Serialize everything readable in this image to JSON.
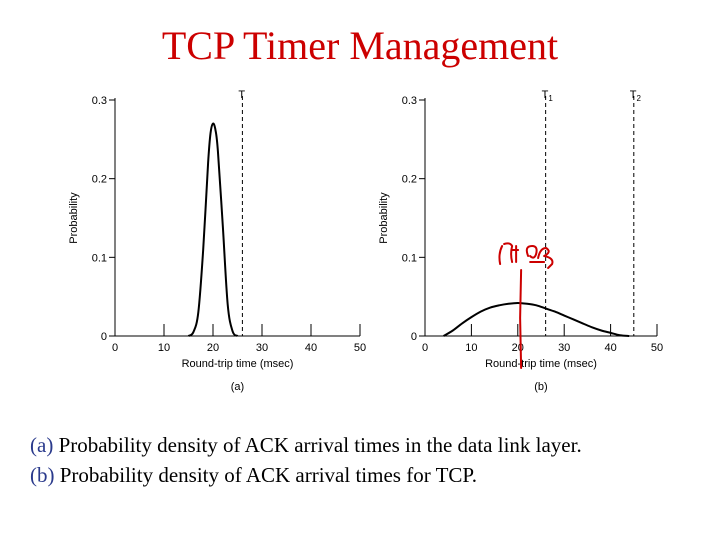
{
  "title": "TCP Timer Management",
  "caption": [
    {
      "marker": "(a)",
      "text": " Probability density of ACK arrival times in the data link layer."
    },
    {
      "marker": "(b)",
      "text": " Probability density of  ACK arrival times for TCP."
    }
  ],
  "colors": {
    "title": "#cc0000",
    "caption_marker": "#2a3a8c",
    "annotation": "#cc0000"
  },
  "chart_data": [
    {
      "type": "line",
      "panel_label": "(a)",
      "xlabel": "Round-trip time (msec)",
      "ylabel": "Probability",
      "xlim": [
        0,
        50
      ],
      "ylim": [
        0,
        0.3
      ],
      "xticks": [
        0,
        10,
        20,
        30,
        40,
        50
      ],
      "yticks": [
        0,
        0.1,
        0.2,
        0.3
      ],
      "ytick_labels": [
        "0",
        "0.1",
        "0.2",
        "0.3"
      ],
      "grid": false,
      "series": [
        {
          "x": [
            15,
            16,
            17,
            18,
            19,
            19.5,
            20,
            20.5,
            21,
            22,
            23,
            24,
            25
          ],
          "y": [
            0,
            0.005,
            0.03,
            0.11,
            0.22,
            0.258,
            0.27,
            0.262,
            0.235,
            0.14,
            0.04,
            0.006,
            0
          ]
        }
      ],
      "vlines": [
        {
          "x": 26,
          "label": "T",
          "sub": ""
        }
      ]
    },
    {
      "type": "line",
      "panel_label": "(b)",
      "xlabel": "Round-trip time (msec)",
      "ylabel": "Probability",
      "xlim": [
        0,
        50
      ],
      "ylim": [
        0,
        0.3
      ],
      "xticks": [
        0,
        10,
        20,
        30,
        40,
        50
      ],
      "yticks": [
        0,
        0.1,
        0.2,
        0.3
      ],
      "ytick_labels": [
        "0",
        "0.1",
        "0.2",
        "0.3"
      ],
      "grid": false,
      "series": [
        {
          "x": [
            4,
            6,
            8,
            10,
            12,
            14,
            16,
            18,
            20,
            22,
            24,
            26,
            28,
            30,
            32,
            34,
            36,
            38,
            40,
            42,
            44
          ],
          "y": [
            0,
            0.007,
            0.016,
            0.024,
            0.031,
            0.036,
            0.039,
            0.041,
            0.042,
            0.041,
            0.039,
            0.035,
            0.031,
            0.026,
            0.021,
            0.016,
            0.011,
            0.007,
            0.004,
            0.001,
            0
          ]
        }
      ],
      "vlines": [
        {
          "x": 26,
          "label": "T",
          "sub": "1"
        },
        {
          "x": 45,
          "label": "T",
          "sub": "2"
        }
      ],
      "annotation": {
        "x": 20.5
      }
    }
  ]
}
